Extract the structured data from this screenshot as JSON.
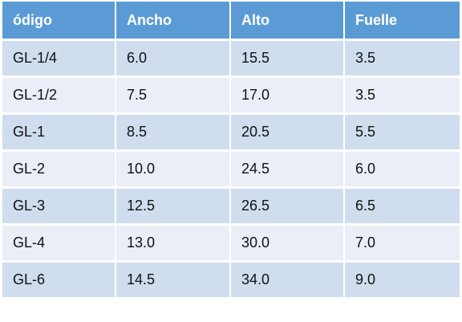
{
  "table": {
    "headers": [
      "ódigo",
      "Ancho",
      "Alto",
      "Fuelle"
    ],
    "rows": [
      [
        "GL-1/4",
        "6.0",
        "15.5",
        "3.5"
      ],
      [
        "GL-1/2",
        "7.5",
        "17.0",
        "3.5"
      ],
      [
        "GL-1",
        "8.5",
        "20.5",
        "5.5"
      ],
      [
        "GL-2",
        "10.0",
        "24.5",
        "6.0"
      ],
      [
        "GL-3",
        "12.5",
        "26.5",
        "6.5"
      ],
      [
        "GL-4",
        "13.0",
        "30.0",
        "7.0"
      ],
      [
        "GL-6",
        "14.5",
        "34.0",
        "9.0"
      ]
    ]
  },
  "colors": {
    "header": "#5b9bd5",
    "row_odd": "#cfddef",
    "row_even": "#e9eef7"
  }
}
